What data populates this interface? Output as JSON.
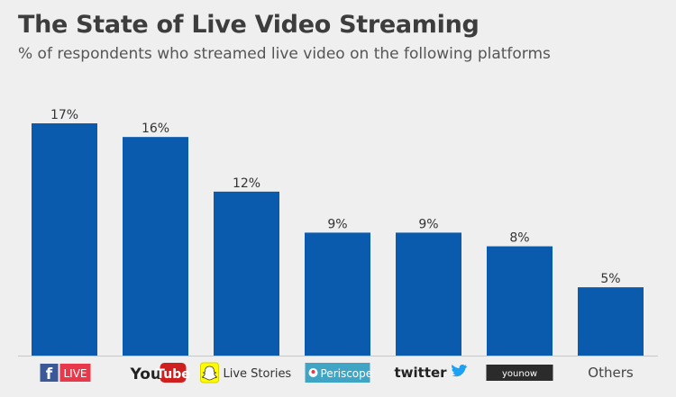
{
  "title": "The State of Live Video Streaming",
  "subtitle": "% of respondents who streamed live video on the following platforms",
  "chart_data": {
    "type": "bar",
    "title": "The State of Live Video Streaming",
    "subtitle": "% of respondents who streamed live video on the following platforms",
    "categories": [
      "Facebook Live",
      "YouTube",
      "Snapchat Live Stories",
      "Periscope",
      "Twitter",
      "YouNow",
      "Others"
    ],
    "values": [
      17,
      16,
      12,
      9,
      9,
      8,
      5
    ],
    "value_labels": [
      "17%",
      "16%",
      "12%",
      "9%",
      "9%",
      "8%",
      "5%"
    ],
    "category_labels": [
      "LIVE",
      "YouTube",
      "Live Stories",
      "Periscope",
      "twitter",
      "younow",
      "Others"
    ],
    "xlabel": "",
    "ylabel": "",
    "ylim": [
      0,
      17
    ],
    "grid": false,
    "bar_color": "#0a5aad"
  },
  "colors": {
    "background": "#efefef",
    "bar": "#0a5aad",
    "facebook": "#3b5998",
    "live_badge": "#e8384a",
    "youtube_red": "#cd201f",
    "snapchat_yellow": "#fffc00",
    "periscope": "#40a4c4",
    "twitter_blue": "#1da1f2",
    "younow_bg": "#2b2b2b"
  }
}
